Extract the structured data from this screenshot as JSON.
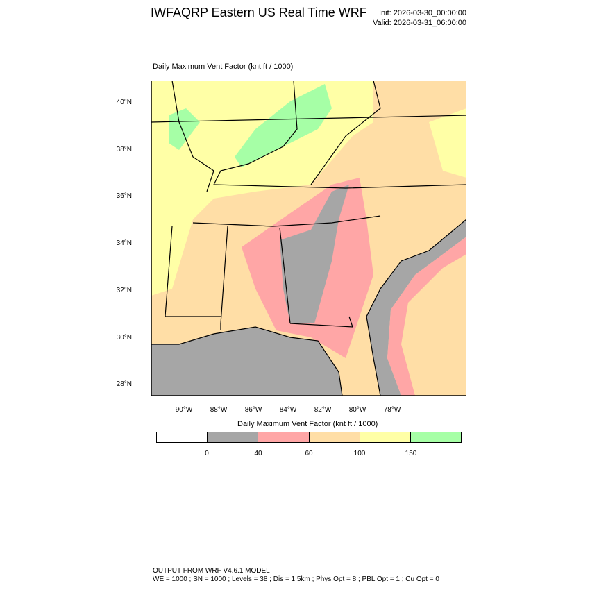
{
  "header": {
    "title": "IWFAQRP Eastern US Real Time WRF",
    "init": "Init: 2026-03-30_00:00:00",
    "valid": "Valid: 2026-03-31_06:00:00"
  },
  "plot": {
    "subtitle": "Daily Maximum Vent Factor   (knt ft / 1000)",
    "lat_labels": [
      "40°N",
      "38°N",
      "36°N",
      "34°N",
      "32°N",
      "30°N",
      "28°N"
    ],
    "lon_labels": [
      "90°W",
      "88°W",
      "86°W",
      "84°W",
      "82°W",
      "80°W",
      "78°W"
    ]
  },
  "colorbar": {
    "title": "Daily Maximum Vent Factor  (knt ft / 1000)",
    "colors": [
      "#ffffff",
      "#a6a6a6",
      "#ffa6a6",
      "#ffdea6",
      "#ffffa6",
      "#a6ffa6"
    ],
    "labels": [
      "0",
      "40",
      "60",
      "100",
      "150"
    ]
  },
  "footer": {
    "line1": "OUTPUT FROM WRF V4.6.1 MODEL",
    "line2": "WE = 1000 ; SN = 1000 ; Levels = 38 ; Dis = 1.5km ; Phys Opt = 8 ; PBL Opt = 1 ; Cu Opt = 0"
  }
}
